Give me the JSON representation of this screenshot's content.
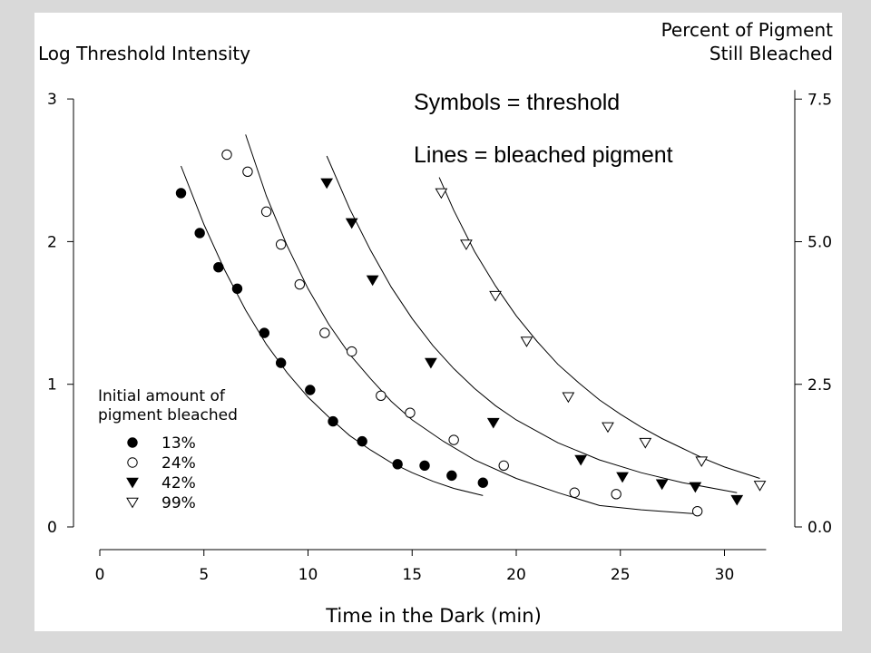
{
  "chart_data": {
    "type": "scatter",
    "left_axis": {
      "label": "Log Threshold Intensity",
      "ylim": [
        0,
        3
      ],
      "ticks": [
        0,
        1,
        2,
        3
      ],
      "tick_labels": [
        "0",
        "1",
        "2",
        "3"
      ]
    },
    "right_axis": {
      "label_lines": [
        "Percent of Pigment",
        "Still Bleached"
      ],
      "ylim": [
        0,
        7.5
      ],
      "ticks": [
        0,
        2.5,
        5.0,
        7.5
      ],
      "tick_labels": [
        "0.0",
        "2.5",
        "5.0",
        "7.5"
      ]
    },
    "x_axis": {
      "label": "Time in the Dark (min)",
      "xlim": [
        0,
        32
      ],
      "ticks": [
        0,
        5,
        10,
        15,
        20,
        25,
        30
      ],
      "tick_labels": [
        "0",
        "5",
        "10",
        "15",
        "20",
        "25",
        "30"
      ]
    },
    "annotations": [
      "Symbols = threshold",
      "Lines = bleached pigment"
    ],
    "legend": {
      "title_lines": [
        "Initial amount of",
        "pigment bleached"
      ],
      "placement": "bottom-left"
    },
    "series": [
      {
        "name": "13%",
        "marker": "filled-circle",
        "points": [
          [
            3.9,
            2.34
          ],
          [
            4.8,
            2.06
          ],
          [
            5.7,
            1.82
          ],
          [
            6.6,
            1.67
          ],
          [
            7.9,
            1.36
          ],
          [
            8.7,
            1.15
          ],
          [
            10.1,
            0.96
          ],
          [
            11.2,
            0.74
          ],
          [
            12.6,
            0.6
          ],
          [
            14.3,
            0.44
          ],
          [
            15.6,
            0.43
          ],
          [
            16.9,
            0.36
          ],
          [
            18.4,
            0.31
          ]
        ],
        "curve": [
          [
            3.9,
            2.53
          ],
          [
            5.0,
            2.12
          ],
          [
            6.0,
            1.8
          ],
          [
            7.0,
            1.52
          ],
          [
            8.0,
            1.28
          ],
          [
            9.0,
            1.08
          ],
          [
            10.0,
            0.91
          ],
          [
            11.0,
            0.77
          ],
          [
            12.0,
            0.64
          ],
          [
            13.0,
            0.54
          ],
          [
            14.0,
            0.45
          ],
          [
            15.0,
            0.38
          ],
          [
            16.0,
            0.32
          ],
          [
            17.0,
            0.27
          ],
          [
            18.4,
            0.22
          ]
        ]
      },
      {
        "name": "24%",
        "marker": "open-circle",
        "points": [
          [
            6.1,
            2.61
          ],
          [
            7.1,
            2.49
          ],
          [
            8.0,
            2.21
          ],
          [
            8.7,
            1.98
          ],
          [
            9.6,
            1.7
          ],
          [
            10.8,
            1.36
          ],
          [
            12.1,
            1.23
          ],
          [
            13.5,
            0.92
          ],
          [
            14.9,
            0.8
          ],
          [
            17.0,
            0.61
          ],
          [
            19.4,
            0.43
          ],
          [
            22.8,
            0.24
          ],
          [
            24.8,
            0.23
          ],
          [
            28.7,
            0.11
          ]
        ],
        "curve": [
          [
            7.0,
            2.75
          ],
          [
            8.0,
            2.32
          ],
          [
            9.0,
            1.97
          ],
          [
            10.0,
            1.67
          ],
          [
            11.0,
            1.42
          ],
          [
            12.0,
            1.21
          ],
          [
            13.0,
            1.04
          ],
          [
            14.0,
            0.88
          ],
          [
            15.0,
            0.75
          ],
          [
            16.5,
            0.6
          ],
          [
            18.0,
            0.47
          ],
          [
            20.0,
            0.34
          ],
          [
            22.0,
            0.24
          ],
          [
            24.0,
            0.15
          ],
          [
            26.0,
            0.12
          ],
          [
            28.8,
            0.09
          ]
        ]
      },
      {
        "name": "42%",
        "marker": "filled-triangle-down",
        "points": [
          [
            10.9,
            2.41
          ],
          [
            12.1,
            2.13
          ],
          [
            13.1,
            1.73
          ],
          [
            15.9,
            1.15
          ],
          [
            18.9,
            0.73
          ],
          [
            23.1,
            0.47
          ],
          [
            25.1,
            0.35
          ],
          [
            27.0,
            0.3
          ],
          [
            28.6,
            0.28
          ],
          [
            30.6,
            0.19
          ]
        ],
        "curve": [
          [
            10.9,
            2.6
          ],
          [
            12.0,
            2.23
          ],
          [
            13.0,
            1.94
          ],
          [
            14.0,
            1.68
          ],
          [
            15.0,
            1.46
          ],
          [
            16.0,
            1.27
          ],
          [
            17.0,
            1.11
          ],
          [
            18.0,
            0.97
          ],
          [
            19.0,
            0.85
          ],
          [
            20.0,
            0.75
          ],
          [
            22.0,
            0.59
          ],
          [
            24.0,
            0.47
          ],
          [
            26.0,
            0.38
          ],
          [
            28.0,
            0.31
          ],
          [
            30.6,
            0.24
          ]
        ]
      },
      {
        "name": "99%",
        "marker": "open-triangle-down",
        "points": [
          [
            16.4,
            2.34
          ],
          [
            17.6,
            1.98
          ],
          [
            19.0,
            1.62
          ],
          [
            20.5,
            1.3
          ],
          [
            22.5,
            0.91
          ],
          [
            24.4,
            0.7
          ],
          [
            26.2,
            0.59
          ],
          [
            28.9,
            0.46
          ],
          [
            31.7,
            0.29
          ]
        ],
        "curve": [
          [
            16.3,
            2.45
          ],
          [
            17.0,
            2.22
          ],
          [
            18.0,
            1.93
          ],
          [
            19.0,
            1.69
          ],
          [
            20.0,
            1.48
          ],
          [
            21.0,
            1.3
          ],
          [
            22.0,
            1.14
          ],
          [
            23.0,
            1.01
          ],
          [
            24.0,
            0.89
          ],
          [
            25.0,
            0.79
          ],
          [
            26.0,
            0.7
          ],
          [
            27.0,
            0.62
          ],
          [
            28.0,
            0.55
          ],
          [
            29.0,
            0.48
          ],
          [
            30.0,
            0.42
          ],
          [
            31.7,
            0.34
          ]
        ]
      }
    ]
  }
}
